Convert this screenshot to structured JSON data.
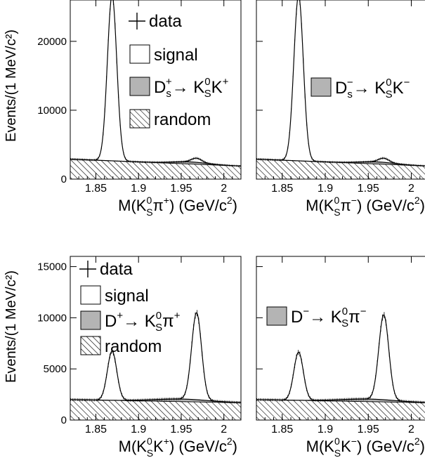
{
  "ylabel": "Events/(1 MeV/c²)",
  "legend_labels": {
    "data": "data",
    "signal": "signal",
    "random": "random",
    "ds_plus": {
      "main": "D",
      "sub": "s",
      "sup": "+",
      "arrow": "→ K",
      "k0sup": "0",
      "k0sub": "S",
      "tail": "K",
      "tailsup": "+"
    },
    "ds_minus": {
      "main": "D",
      "sub": "s",
      "sup": "−",
      "arrow": "→ K",
      "k0sup": "0",
      "k0sub": "S",
      "tail": "K",
      "tailsup": "−"
    },
    "d_plus": {
      "main": "D",
      "sub": "",
      "sup": "+",
      "arrow": "→ K",
      "k0sup": "0",
      "k0sub": "S",
      "tail": "π",
      "tailsup": "+"
    },
    "d_minus": {
      "main": "D",
      "sub": "",
      "sup": "−",
      "arrow": "→ K",
      "k0sup": "0",
      "k0sub": "S",
      "tail": "π",
      "tailsup": "−"
    }
  },
  "colors": {
    "background": "#ffffff",
    "frame": "#000000",
    "swap_fill": "#b4b4b4",
    "hatch": "#000000"
  },
  "chart_data": [
    {
      "type": "line",
      "panel": "top-left",
      "xlabel": {
        "pre": "M(K",
        "sup": "0",
        "sub": "S",
        "post": "π",
        "postsup": "+",
        "tail": ") (GeV/c",
        "tailsup": "2",
        "end": ")"
      },
      "ylabel": "Events/(1 MeV/c²)",
      "xlim": [
        1.82,
        2.02
      ],
      "ylim": [
        0,
        26000
      ],
      "xticks": [
        1.85,
        1.9,
        1.95,
        2
      ],
      "xtick_labels": [
        "1.85",
        "1.9",
        "1.95",
        "2"
      ],
      "yticks": [
        0,
        10000,
        20000
      ],
      "ytick_labels": [
        "0",
        "10000",
        "20000"
      ],
      "peaks": [
        {
          "mass": 1.869,
          "height": 24000,
          "width": 0.0055
        },
        {
          "mass": 1.968,
          "height": 600,
          "width": 0.006
        }
      ],
      "background": {
        "y_at_xmin": 2900,
        "y_at_xmax": 1900
      },
      "swap": {
        "y_at_xmin": 0,
        "y_at_xmax": 0,
        "mass": 1.96,
        "height": 300,
        "width": 0.02
      },
      "legend": [
        "data",
        "signal",
        "ds_plus",
        "random"
      ],
      "legend_position": "top-right"
    },
    {
      "type": "line",
      "panel": "top-right",
      "xlabel": {
        "pre": "M(K",
        "sup": "0",
        "sub": "S",
        "post": "π",
        "postsup": "−",
        "tail": ") (GeV/c",
        "tailsup": "2",
        "end": ")"
      },
      "ylabel": "",
      "xlim": [
        1.82,
        2.02
      ],
      "ylim": [
        0,
        26000
      ],
      "xticks": [
        1.85,
        1.9,
        1.95,
        2
      ],
      "xtick_labels": [
        "1.85",
        "1.9",
        "1.95",
        "2"
      ],
      "yticks": [
        0,
        10000,
        20000
      ],
      "ytick_labels": [],
      "peaks": [
        {
          "mass": 1.869,
          "height": 24000,
          "width": 0.0055
        },
        {
          "mass": 1.968,
          "height": 600,
          "width": 0.006
        }
      ],
      "background": {
        "y_at_xmin": 2900,
        "y_at_xmax": 1900
      },
      "swap": {
        "y_at_xmin": 0,
        "y_at_xmax": 0,
        "mass": 1.96,
        "height": 300,
        "width": 0.02
      },
      "legend": [
        "ds_minus"
      ],
      "legend_position": "middle-right"
    },
    {
      "type": "line",
      "panel": "bottom-left",
      "xlabel": {
        "pre": "M(K",
        "sup": "0",
        "sub": "S",
        "post": "K",
        "postsup": "+",
        "tail": ") (GeV/c",
        "tailsup": "2",
        "end": ")"
      },
      "ylabel": "Events/(1 MeV/c²)",
      "xlim": [
        1.82,
        2.02
      ],
      "ylim": [
        0,
        16000
      ],
      "xticks": [
        1.85,
        1.9,
        1.95,
        2
      ],
      "xtick_labels": [
        "1.85",
        "1.9",
        "1.95",
        "2"
      ],
      "yticks": [
        0,
        5000,
        10000,
        15000
      ],
      "ytick_labels": [
        "0",
        "5000",
        "10000",
        "15000"
      ],
      "peaks": [
        {
          "mass": 1.869,
          "height": 4800,
          "width": 0.0055
        },
        {
          "mass": 1.968,
          "height": 8500,
          "width": 0.0058
        }
      ],
      "background": {
        "y_at_xmin": 2000,
        "y_at_xmax": 1700
      },
      "swap": {
        "y_at_xmin": 0,
        "y_at_xmax": 0,
        "mass": 1.95,
        "height": 250,
        "width": 0.03
      },
      "legend": [
        "data",
        "signal",
        "d_plus",
        "random"
      ],
      "legend_position": "top-left"
    },
    {
      "type": "line",
      "panel": "bottom-right",
      "xlabel": {
        "pre": "M(K",
        "sup": "0",
        "sub": "S",
        "post": "K",
        "postsup": "−",
        "tail": ") (GeV/c",
        "tailsup": "2",
        "end": ")"
      },
      "ylabel": "",
      "xlim": [
        1.82,
        2.02
      ],
      "ylim": [
        0,
        16000
      ],
      "xticks": [
        1.85,
        1.9,
        1.95,
        2
      ],
      "xtick_labels": [
        "1.85",
        "1.9",
        "1.95",
        "2"
      ],
      "yticks": [
        0,
        5000,
        10000,
        15000
      ],
      "ytick_labels": [],
      "peaks": [
        {
          "mass": 1.869,
          "height": 4700,
          "width": 0.0055
        },
        {
          "mass": 1.968,
          "height": 8300,
          "width": 0.0058
        }
      ],
      "background": {
        "y_at_xmin": 2000,
        "y_at_xmax": 1700
      },
      "swap": {
        "y_at_xmin": 0,
        "y_at_xmax": 0,
        "mass": 1.95,
        "height": 250,
        "width": 0.03
      },
      "legend": [
        "d_minus"
      ],
      "legend_position": "middle-left"
    }
  ]
}
